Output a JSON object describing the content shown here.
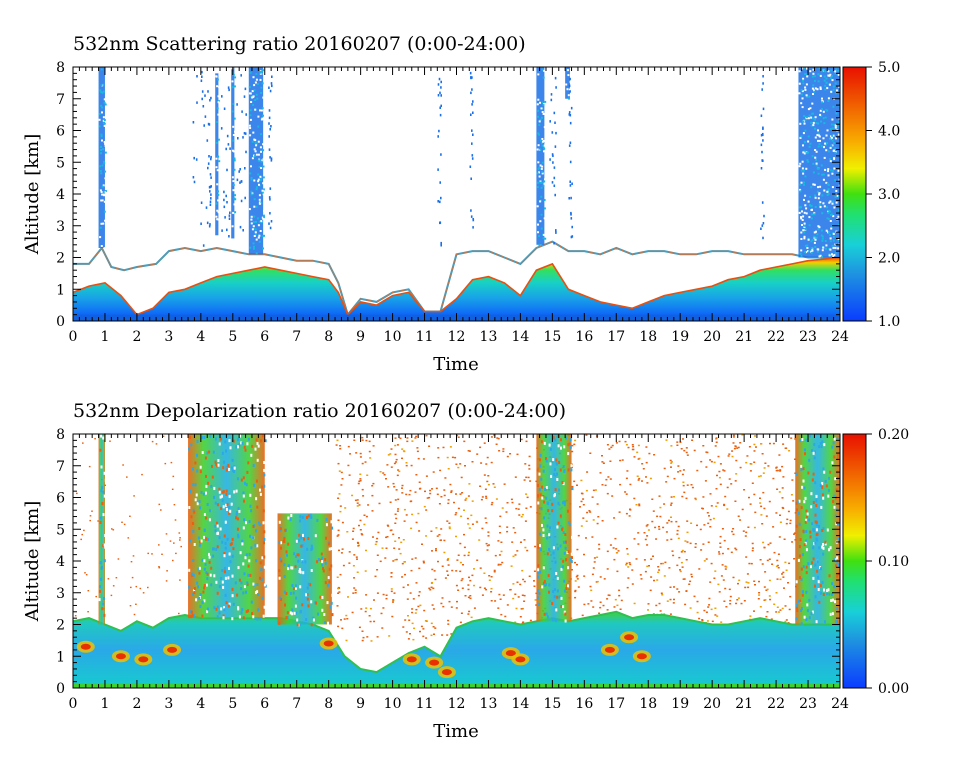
{
  "chart_data": [
    {
      "type": "heatmap",
      "title": "532nm Scattering ratio  20160207 (0:00-24:00)",
      "xlabel": "Time",
      "ylabel": "Altitude [km]",
      "xlim": [
        0,
        24
      ],
      "ylim": [
        0,
        8
      ],
      "x_ticks": [
        "0",
        "1",
        "2",
        "3",
        "4",
        "5",
        "6",
        "7",
        "8",
        "9",
        "10",
        "11",
        "12",
        "13",
        "14",
        "15",
        "16",
        "17",
        "18",
        "19",
        "20",
        "21",
        "22",
        "23",
        "24"
      ],
      "y_ticks": [
        "0",
        "1",
        "2",
        "3",
        "4",
        "5",
        "6",
        "7",
        "8"
      ],
      "colorbar": {
        "min": 1.0,
        "max": 5.0,
        "ticks": [
          "1.0",
          "2.0",
          "3.0",
          "4.0",
          "5.0"
        ]
      },
      "boundary_layer_top_km": [
        [
          0,
          1.8
        ],
        [
          0.5,
          1.8
        ],
        [
          0.9,
          2.3
        ],
        [
          1.2,
          1.7
        ],
        [
          1.6,
          1.6
        ],
        [
          2.0,
          1.7
        ],
        [
          2.6,
          1.8
        ],
        [
          3.0,
          2.2
        ],
        [
          3.5,
          2.3
        ],
        [
          4.0,
          2.2
        ],
        [
          4.5,
          2.3
        ],
        [
          5.0,
          2.2
        ],
        [
          5.5,
          2.1
        ],
        [
          6.0,
          2.1
        ],
        [
          6.5,
          2.0
        ],
        [
          7.0,
          1.9
        ],
        [
          7.5,
          1.9
        ],
        [
          8.0,
          1.8
        ],
        [
          8.3,
          1.2
        ],
        [
          8.6,
          0.2
        ],
        [
          9.0,
          0.7
        ],
        [
          9.5,
          0.6
        ],
        [
          10.0,
          0.9
        ],
        [
          10.5,
          1.0
        ],
        [
          11.0,
          0.3
        ],
        [
          11.5,
          0.3
        ],
        [
          12.0,
          2.1
        ],
        [
          12.5,
          2.2
        ],
        [
          13.0,
          2.2
        ],
        [
          13.5,
          2.0
        ],
        [
          14.0,
          1.8
        ],
        [
          14.5,
          2.3
        ],
        [
          15.0,
          2.5
        ],
        [
          15.5,
          2.2
        ],
        [
          16.0,
          2.2
        ],
        [
          16.5,
          2.1
        ],
        [
          17.0,
          2.3
        ],
        [
          17.5,
          2.1
        ],
        [
          18.0,
          2.2
        ],
        [
          18.5,
          2.2
        ],
        [
          19.0,
          2.1
        ],
        [
          19.5,
          2.1
        ],
        [
          20.0,
          2.2
        ],
        [
          20.5,
          2.2
        ],
        [
          21.0,
          2.1
        ],
        [
          21.5,
          2.1
        ],
        [
          22.0,
          2.1
        ],
        [
          22.5,
          2.1
        ],
        [
          23.0,
          2.0
        ],
        [
          24.0,
          2.0
        ]
      ],
      "aerosol_layer_top_km": [
        [
          0,
          0.9
        ],
        [
          0.5,
          1.1
        ],
        [
          1.0,
          1.2
        ],
        [
          1.5,
          0.8
        ],
        [
          2.0,
          0.2
        ],
        [
          2.5,
          0.4
        ],
        [
          3.0,
          0.9
        ],
        [
          3.5,
          1.0
        ],
        [
          4.0,
          1.2
        ],
        [
          4.5,
          1.4
        ],
        [
          5.0,
          1.5
        ],
        [
          5.5,
          1.6
        ],
        [
          6.0,
          1.7
        ],
        [
          6.5,
          1.6
        ],
        [
          7.0,
          1.5
        ],
        [
          7.5,
          1.4
        ],
        [
          8.0,
          1.3
        ],
        [
          8.3,
          0.9
        ],
        [
          8.6,
          0.2
        ],
        [
          9.0,
          0.6
        ],
        [
          9.5,
          0.5
        ],
        [
          10.0,
          0.8
        ],
        [
          10.5,
          0.9
        ],
        [
          11.0,
          0.3
        ],
        [
          11.5,
          0.3
        ],
        [
          12.0,
          0.7
        ],
        [
          12.5,
          1.3
        ],
        [
          13.0,
          1.4
        ],
        [
          13.5,
          1.2
        ],
        [
          14.0,
          0.8
        ],
        [
          14.5,
          1.6
        ],
        [
          15.0,
          1.8
        ],
        [
          15.5,
          1.0
        ],
        [
          16.0,
          0.8
        ],
        [
          16.5,
          0.6
        ],
        [
          17.0,
          0.5
        ],
        [
          17.5,
          0.4
        ],
        [
          18.0,
          0.6
        ],
        [
          18.5,
          0.8
        ],
        [
          19.0,
          0.9
        ],
        [
          19.5,
          1.0
        ],
        [
          20.0,
          1.1
        ],
        [
          20.5,
          1.3
        ],
        [
          21.0,
          1.4
        ],
        [
          21.5,
          1.6
        ],
        [
          22.0,
          1.7
        ],
        [
          22.5,
          1.8
        ],
        [
          23.0,
          1.9
        ],
        [
          24.0,
          2.0
        ]
      ],
      "clouds": [
        {
          "t0": 0.8,
          "t1": 1.0,
          "z0": 2.3,
          "z1": 8.0
        },
        {
          "t0": 5.5,
          "t1": 5.95,
          "z0": 2.1,
          "z1": 8.0
        },
        {
          "t0": 4.95,
          "t1": 5.05,
          "z0": 2.6,
          "z1": 8.0
        },
        {
          "t0": 4.45,
          "t1": 4.55,
          "z0": 2.7,
          "z1": 7.8
        },
        {
          "t0": 14.5,
          "t1": 14.75,
          "z0": 2.4,
          "z1": 8.0
        },
        {
          "t0": 15.4,
          "t1": 15.55,
          "z0": 7.0,
          "z1": 8.0
        },
        {
          "t0": 22.7,
          "t1": 24.0,
          "z0": 2.0,
          "z1": 8.0
        }
      ]
    },
    {
      "type": "heatmap",
      "title": "532nm Depolarization ratio  20160207 (0:00-24:00)",
      "xlabel": "Time",
      "ylabel": "Altitude [km]",
      "xlim": [
        0,
        24
      ],
      "ylim": [
        0,
        8
      ],
      "x_ticks": [
        "0",
        "1",
        "2",
        "3",
        "4",
        "5",
        "6",
        "7",
        "8",
        "9",
        "10",
        "11",
        "12",
        "13",
        "14",
        "15",
        "16",
        "17",
        "18",
        "19",
        "20",
        "21",
        "22",
        "23",
        "24"
      ],
      "y_ticks": [
        "0",
        "1",
        "2",
        "3",
        "4",
        "5",
        "6",
        "7",
        "8"
      ],
      "colorbar": {
        "min": 0.0,
        "max": 0.2,
        "ticks": [
          "0.00",
          "0.10",
          "0.20"
        ]
      },
      "layer_top_km": [
        [
          0,
          2.1
        ],
        [
          0.5,
          2.2
        ],
        [
          1.0,
          2.0
        ],
        [
          1.5,
          1.8
        ],
        [
          2.0,
          2.1
        ],
        [
          2.5,
          1.9
        ],
        [
          3.0,
          2.2
        ],
        [
          3.5,
          2.3
        ],
        [
          4.0,
          2.2
        ],
        [
          5.0,
          2.2
        ],
        [
          6.0,
          2.2
        ],
        [
          6.5,
          2.2
        ],
        [
          7.0,
          2.1
        ],
        [
          7.5,
          2.0
        ],
        [
          8.0,
          1.8
        ],
        [
          8.5,
          1.0
        ],
        [
          9.0,
          0.6
        ],
        [
          9.5,
          0.5
        ],
        [
          10.0,
          0.8
        ],
        [
          10.5,
          1.1
        ],
        [
          11.0,
          1.3
        ],
        [
          11.5,
          1.0
        ],
        [
          12.0,
          1.9
        ],
        [
          12.5,
          2.1
        ],
        [
          13.0,
          2.2
        ],
        [
          13.5,
          2.1
        ],
        [
          14.0,
          2.0
        ],
        [
          14.5,
          2.1
        ],
        [
          15.0,
          2.2
        ],
        [
          15.5,
          2.1
        ],
        [
          16.0,
          2.2
        ],
        [
          16.5,
          2.3
        ],
        [
          17.0,
          2.4
        ],
        [
          17.5,
          2.2
        ],
        [
          18.0,
          2.3
        ],
        [
          18.5,
          2.3
        ],
        [
          19.0,
          2.2
        ],
        [
          19.5,
          2.1
        ],
        [
          20.0,
          2.0
        ],
        [
          20.5,
          2.0
        ],
        [
          21.0,
          2.1
        ],
        [
          21.5,
          2.2
        ],
        [
          22.0,
          2.1
        ],
        [
          22.5,
          2.0
        ],
        [
          23.0,
          2.0
        ],
        [
          24.0,
          2.0
        ]
      ],
      "high_depol_columns": [
        {
          "t0": 0.8,
          "t1": 1.0,
          "z0": 2.0,
          "z1": 8.0
        },
        {
          "t0": 3.6,
          "t1": 6.0,
          "z0": 2.2,
          "z1": 8.0
        },
        {
          "t0": 6.4,
          "t1": 8.1,
          "z0": 2.0,
          "z1": 5.5
        },
        {
          "t0": 14.5,
          "t1": 15.6,
          "z0": 2.1,
          "z1": 8.0
        },
        {
          "t0": 22.6,
          "t1": 24.0,
          "z0": 2.0,
          "z1": 8.0
        }
      ],
      "noise_region": {
        "t0": 8.2,
        "t1": 22.6,
        "z0": 1.5,
        "z1": 8.0
      }
    }
  ]
}
